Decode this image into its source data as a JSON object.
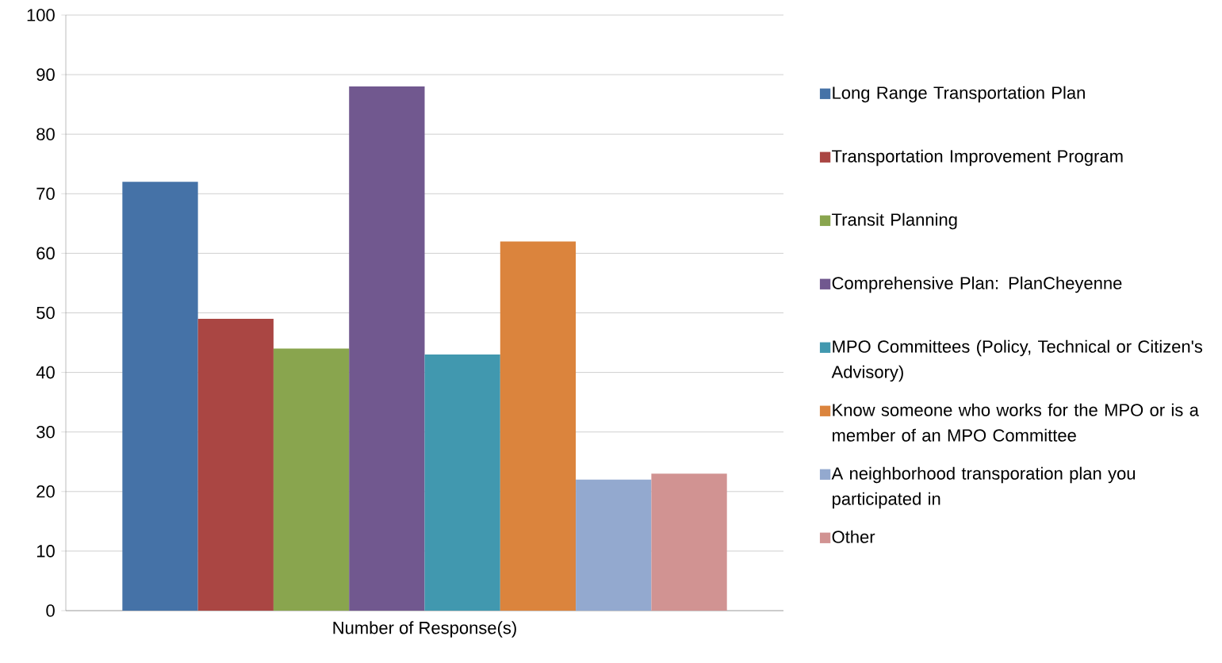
{
  "chart_data": {
    "type": "bar",
    "categories": [
      "Number of Response(s)"
    ],
    "series": [
      {
        "name": "Long Range Transportation Plan",
        "color": "#4572a7",
        "values": [
          72
        ]
      },
      {
        "name": "Transportation Improvement Program",
        "color": "#aa4643",
        "values": [
          49
        ]
      },
      {
        "name": "Transit Planning",
        "color": "#89a54e",
        "values": [
          44
        ]
      },
      {
        "name": "Comprehensive Plan: PlanCheyenne",
        "color": "#71588f",
        "values": [
          88
        ]
      },
      {
        "name": "MPO Committees (Policy, Technical or Citizen's Advisory)",
        "color": "#4198af",
        "values": [
          43
        ]
      },
      {
        "name": "Know someone who works for the MPO or is a member of an MPO Committee",
        "color": "#db843d",
        "values": [
          62
        ]
      },
      {
        "name": "A neighborhood transporation plan you participated in",
        "color": "#93a9cf",
        "values": [
          22
        ]
      },
      {
        "name": "Other",
        "color": "#d19392",
        "values": [
          23
        ]
      }
    ],
    "ylim": [
      0,
      100
    ],
    "yticks": [
      0,
      10,
      20,
      30,
      40,
      50,
      60,
      70,
      80,
      90,
      100
    ],
    "grid": "y",
    "legend": "right"
  }
}
